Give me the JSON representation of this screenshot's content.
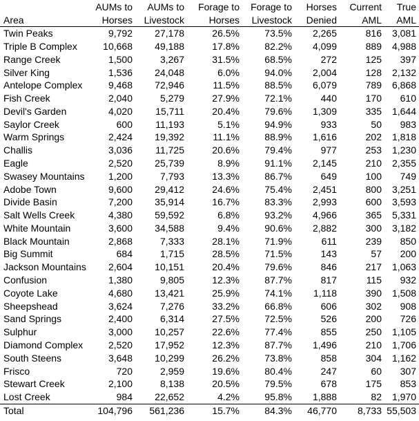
{
  "table": {
    "header": {
      "columns": [
        {
          "line1": "",
          "line2": "Area"
        },
        {
          "line1": "AUMs to",
          "line2": "Horses"
        },
        {
          "line1": "AUMs to",
          "line2": "Livestock"
        },
        {
          "line1": "Forage to",
          "line2": "Horses"
        },
        {
          "line1": "Forage to",
          "line2": "Livestock"
        },
        {
          "line1": "Horses",
          "line2": "Denied"
        },
        {
          "line1": "Current",
          "line2": "AML"
        },
        {
          "line1": "True",
          "line2": "AML"
        }
      ]
    },
    "rows": [
      [
        "Twin Peaks",
        "9,792",
        "27,178",
        "26.5%",
        "73.5%",
        "2,265",
        "816",
        "3,081"
      ],
      [
        "Triple B Complex",
        "10,668",
        "49,188",
        "17.8%",
        "82.2%",
        "4,099",
        "889",
        "4,988"
      ],
      [
        "Range Creek",
        "1,500",
        "3,267",
        "31.5%",
        "68.5%",
        "272",
        "125",
        "397"
      ],
      [
        "Silver King",
        "1,536",
        "24,048",
        "6.0%",
        "94.0%",
        "2,004",
        "128",
        "2,132"
      ],
      [
        "Antelope Complex",
        "9,468",
        "72,946",
        "11.5%",
        "88.5%",
        "6,079",
        "789",
        "6,868"
      ],
      [
        "Fish Creek",
        "2,040",
        "5,279",
        "27.9%",
        "72.1%",
        "440",
        "170",
        "610"
      ],
      [
        "Devil's Garden",
        "4,020",
        "15,711",
        "20.4%",
        "79.6%",
        "1,309",
        "335",
        "1,644"
      ],
      [
        "Saylor Creek",
        "600",
        "11,193",
        "5.1%",
        "94.9%",
        "933",
        "50",
        "983"
      ],
      [
        "Warm Springs",
        "2,424",
        "19,392",
        "11.1%",
        "88.9%",
        "1,616",
        "202",
        "1,818"
      ],
      [
        "Challis",
        "3,036",
        "11,725",
        "20.6%",
        "79.4%",
        "977",
        "253",
        "1,230"
      ],
      [
        "Eagle",
        "2,520",
        "25,739",
        "8.9%",
        "91.1%",
        "2,145",
        "210",
        "2,355"
      ],
      [
        "Swasey Mountains",
        "1,200",
        "7,793",
        "13.3%",
        "86.7%",
        "649",
        "100",
        "749"
      ],
      [
        "Adobe Town",
        "9,600",
        "29,412",
        "24.6%",
        "75.4%",
        "2,451",
        "800",
        "3,251"
      ],
      [
        "Divide Basin",
        "7,200",
        "35,914",
        "16.7%",
        "83.3%",
        "2,993",
        "600",
        "3,593"
      ],
      [
        "Salt Wells Creek",
        "4,380",
        "59,592",
        "6.8%",
        "93.2%",
        "4,966",
        "365",
        "5,331"
      ],
      [
        "White Mountain",
        "3,600",
        "34,588",
        "9.4%",
        "90.6%",
        "2,882",
        "300",
        "3,182"
      ],
      [
        "Black Mountain",
        "2,868",
        "7,333",
        "28.1%",
        "71.9%",
        "611",
        "239",
        "850"
      ],
      [
        "Big Summit",
        "684",
        "1,715",
        "28.5%",
        "71.5%",
        "143",
        "57",
        "200"
      ],
      [
        "Jackson Mountains",
        "2,604",
        "10,151",
        "20.4%",
        "79.6%",
        "846",
        "217",
        "1,063"
      ],
      [
        "Confusion",
        "1,380",
        "9,805",
        "12.3%",
        "87.7%",
        "817",
        "115",
        "932"
      ],
      [
        "Coyote Lake",
        "4,680",
        "13,421",
        "25.9%",
        "74.1%",
        "1,118",
        "390",
        "1,508"
      ],
      [
        "Sheepshead",
        "3,624",
        "7,276",
        "33.2%",
        "66.8%",
        "606",
        "302",
        "908"
      ],
      [
        "Sand Springs",
        "2,400",
        "6,314",
        "27.5%",
        "72.5%",
        "526",
        "200",
        "726"
      ],
      [
        "Sulphur",
        "3,000",
        "10,257",
        "22.6%",
        "77.4%",
        "855",
        "250",
        "1,105"
      ],
      [
        "Diamond Complex",
        "2,520",
        "17,952",
        "12.3%",
        "87.7%",
        "1,496",
        "210",
        "1,706"
      ],
      [
        "South Steens",
        "3,648",
        "10,299",
        "26.2%",
        "73.8%",
        "858",
        "304",
        "1,162"
      ],
      [
        "Frisco",
        "720",
        "2,959",
        "19.6%",
        "80.4%",
        "247",
        "60",
        "307"
      ],
      [
        "Stewart Creek",
        "2,100",
        "8,138",
        "20.5%",
        "79.5%",
        "678",
        "175",
        "853"
      ],
      [
        "Lost Creek",
        "984",
        "22,652",
        "4.2%",
        "95.8%",
        "1,888",
        "82",
        "1,970"
      ]
    ],
    "total": [
      "Total",
      "104,796",
      "561,236",
      "15.7%",
      "84.3%",
      "46,770",
      "8,733",
      "55,503"
    ]
  },
  "colors": {
    "text": "#000000",
    "background": "#ffffff",
    "rule": "#000000"
  }
}
